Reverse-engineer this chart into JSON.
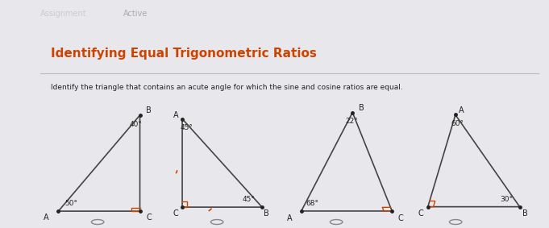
{
  "bg_color": "#e8e8ec",
  "panel_color": "#f0f0f4",
  "title": "Identifying Equal Trigonometric Ratios",
  "title_color": "#cc4400",
  "subtitle": "Identify the triangle that contains an acute angle for which the sine and cosine ratios are equal.",
  "subtitle_color": "#222222",
  "header_line1": "Assignment",
  "header_line2": "Active",
  "triangle1": {
    "vertices": {
      "A": [
        0.05,
        0.0
      ],
      "B": [
        0.42,
        1.0
      ],
      "C": [
        0.42,
        0.0
      ]
    },
    "angles": {
      "A": "50°",
      "B": "40°"
    },
    "right_angle": "C",
    "label_offsets": {
      "A": [
        -0.06,
        -0.04
      ],
      "B": [
        0.01,
        0.02
      ],
      "C": [
        0.01,
        -0.04
      ]
    }
  },
  "triangle2": {
    "vertices": {
      "A": [
        0.0,
        1.0
      ],
      "C": [
        0.0,
        0.0
      ],
      "B": [
        0.5,
        0.0
      ]
    },
    "angles": {
      "A": "45°",
      "B": "45°"
    },
    "right_angle": "C",
    "label_offsets": {
      "A": [
        -0.06,
        0.02
      ],
      "C": [
        -0.06,
        -0.04
      ],
      "B": [
        0.01,
        -0.04
      ]
    }
  },
  "triangle3": {
    "vertices": {
      "A": [
        0.04,
        0.0
      ],
      "B": [
        0.28,
        1.0
      ],
      "C": [
        0.56,
        0.0
      ]
    },
    "angles": {
      "A": "68°",
      "B": "22°"
    },
    "right_angle": "C",
    "label_offsets": {
      "A": [
        -0.08,
        -0.04
      ],
      "B": [
        0.01,
        0.02
      ],
      "C": [
        0.01,
        -0.04
      ]
    }
  },
  "triangle4": {
    "vertices": {
      "A": [
        0.18,
        1.0
      ],
      "C": [
        0.0,
        0.0
      ],
      "B": [
        0.6,
        0.0
      ]
    },
    "angles": {
      "A": "60°",
      "B": "30°"
    },
    "right_angle": "C",
    "label_offsets": {
      "A": [
        0.01,
        0.02
      ],
      "C": [
        -0.06,
        -0.04
      ],
      "B": [
        0.02,
        -0.04
      ]
    }
  },
  "line_color": "#444444",
  "right_angle_color": "#cc4400",
  "tick_color": "#cc4400",
  "angle_label_color": "#222222",
  "vertex_dot_color": "#222222",
  "radio_button_color": "#888888"
}
